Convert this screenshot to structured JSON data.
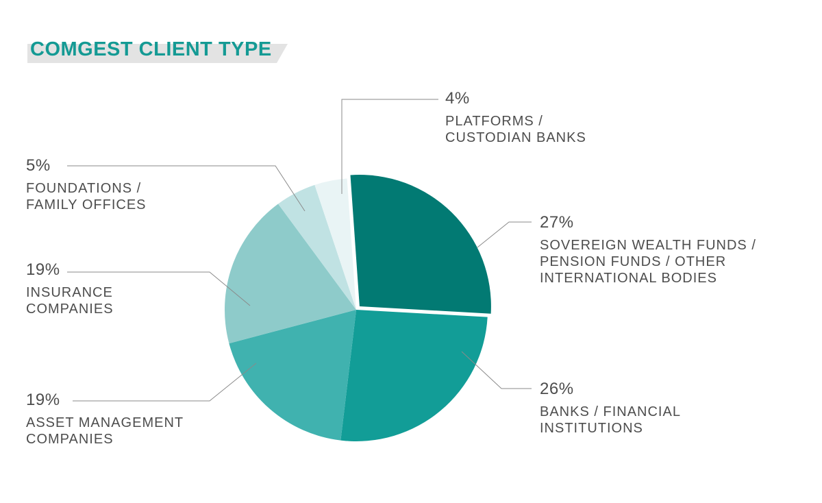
{
  "title": "COMGEST CLIENT TYPE",
  "colors": {
    "title": "#149a94",
    "title_band": "#e3e3e3",
    "text": "#4d4d4d",
    "leader": "#8a8a8a"
  },
  "chart_data": {
    "type": "pie",
    "title": "COMGEST CLIENT TYPE",
    "slices": [
      {
        "label": "SOVEREIGN WEALTH FUNDS / PENSION FUNDS / OTHER INTERNATIONAL BODIES",
        "value": 27,
        "display": "27%",
        "color": "#027a73",
        "exploded": true
      },
      {
        "label": "BANKS / FINANCIAL INSTITUTIONS",
        "value": 26,
        "display": "26%",
        "color": "#129d97"
      },
      {
        "label": "ASSET MANAGEMENT COMPANIES",
        "value": 19,
        "display": "19%",
        "color": "#40b2af"
      },
      {
        "label": "INSURANCE COMPANIES",
        "value": 19,
        "display": "19%",
        "color": "#8ecbca"
      },
      {
        "label": "FOUNDATIONS / FAMILY OFFICES",
        "value": 5,
        "display": "5%",
        "color": "#c0e2e3"
      },
      {
        "label": "PLATFORMS / CUSTODIAN BANKS",
        "value": 4,
        "display": "4%",
        "color": "#e9f4f5"
      }
    ],
    "labels": {
      "platforms": {
        "pct": "4%",
        "name": "PLATFORMS /\nCUSTODIAN BANKS"
      },
      "foundations": {
        "pct": "5%",
        "name": "FOUNDATIONS /\nFAMILY OFFICES"
      },
      "sovereign": {
        "pct": "27%",
        "name": "SOVEREIGN WEALTH FUNDS /\nPENSION FUNDS / OTHER\nINTERNATIONAL BODIES"
      },
      "insurance": {
        "pct": "19%",
        "name": "INSURANCE\nCOMPANIES"
      },
      "asset": {
        "pct": "19%",
        "name": "ASSET MANAGEMENT\nCOMPANIES"
      },
      "banks": {
        "pct": "26%",
        "name": "BANKS / FINANCIAL\nINSTITUTIONS"
      }
    }
  }
}
